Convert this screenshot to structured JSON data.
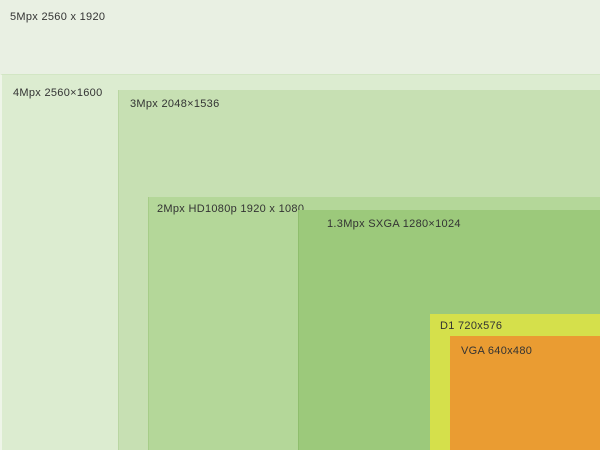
{
  "resolutions": [
    {
      "label": "5Mpx 2560 x 1920"
    },
    {
      "label": "4Mpx 2560×1600"
    },
    {
      "label": "3Mpx 2048×1536"
    },
    {
      "label": "2Mpx HD1080p 1920 x 1080"
    },
    {
      "label": "1.3Mpx SXGA 1280×1024"
    },
    {
      "label": "D1 720x576"
    },
    {
      "label": "VGA 640x480"
    }
  ]
}
